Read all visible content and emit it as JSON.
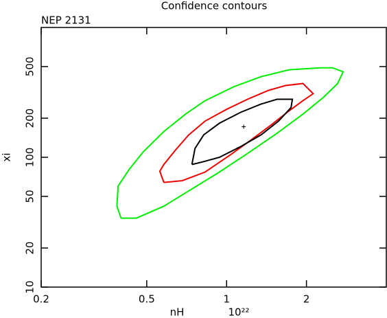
{
  "chart_data": {
    "type": "contour",
    "title": "Confidence contours",
    "subtitle": "NEP 2131",
    "xlabel": "nH",
    "xlabel_unit": "10²²",
    "ylabel": "xi",
    "xscale": "log",
    "yscale": "log",
    "xlim": [
      0.2,
      4
    ],
    "ylim": [
      10,
      1000
    ],
    "xticks": [
      0.2,
      0.5,
      1,
      2
    ],
    "yticks": [
      10,
      20,
      50,
      100,
      200,
      500
    ],
    "series": [
      {
        "color": "#00ee00",
        "x": [
          0.4,
          0.386,
          0.39,
          0.43,
          0.485,
          0.58,
          0.7,
          0.83,
          1.06,
          1.35,
          1.72,
          2.26,
          2.51,
          2.75,
          2.62,
          2.32,
          1.94,
          1.52,
          1.2,
          0.94,
          0.74,
          0.58,
          0.457,
          0.4
        ],
        "y": [
          34,
          42,
          60,
          81,
          110,
          158,
          215,
          273,
          348,
          418,
          472,
          489,
          489,
          455,
          370,
          290,
          215,
          149,
          107,
          77,
          57,
          42,
          34,
          34
        ]
      },
      {
        "color": "#ee0000",
        "x": [
          0.58,
          0.56,
          0.58,
          0.64,
          0.72,
          0.83,
          1.0,
          1.2,
          1.44,
          1.67,
          1.94,
          2.12,
          1.94,
          1.72,
          1.48,
          1.23,
          1.03,
          0.83,
          0.68,
          0.58
        ],
        "y": [
          64,
          78,
          88,
          113,
          149,
          190,
          234,
          280,
          328,
          357,
          370,
          309,
          273,
          228,
          179,
          135,
          104,
          77,
          66,
          64
        ]
      },
      {
        "color": "#000000",
        "x": [
          0.74,
          0.76,
          0.82,
          0.94,
          1.13,
          1.35,
          1.55,
          1.77,
          1.75,
          1.57,
          1.35,
          1.13,
          0.94,
          0.81,
          0.74
        ],
        "y": [
          88,
          117,
          149,
          183,
          222,
          257,
          280,
          280,
          242,
          190,
          149,
          121,
          100,
          92,
          88
        ]
      }
    ],
    "best_fit": {
      "x": 1.16,
      "y": 172
    }
  }
}
